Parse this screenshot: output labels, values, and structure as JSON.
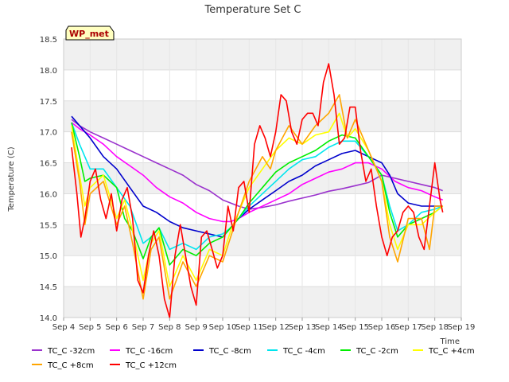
{
  "chart_data": {
    "type": "line",
    "title": "Temperature Set C",
    "xlabel": "Time",
    "ylabel": "Temperature (C)",
    "badge": "WP_met",
    "xlim": [
      4,
      19
    ],
    "ylim": [
      14.0,
      18.5
    ],
    "x_ticks": [
      4,
      5,
      6,
      7,
      8,
      9,
      10,
      11,
      12,
      13,
      14,
      15,
      16,
      17,
      18,
      19
    ],
    "x_tick_labels": [
      "Sep 4",
      "Sep 5",
      "Sep 6",
      "Sep 7",
      "Sep 8",
      "Sep 9",
      "Sep 10",
      "Sep 11",
      "Sep 12",
      "Sep 13",
      "Sep 14",
      "Sep 15",
      "Sep 16",
      "Sep 17",
      "Sep 18",
      "Sep 19"
    ],
    "y_ticks": [
      14.0,
      14.5,
      15.0,
      15.5,
      16.0,
      16.5,
      17.0,
      17.5,
      18.0,
      18.5
    ],
    "y_tick_labels": [
      "14.0",
      "14.5",
      "15.0",
      "15.5",
      "16.0",
      "16.5",
      "17.0",
      "17.5",
      "18.0",
      "18.5"
    ],
    "grid": true,
    "legend_position": "bottom",
    "series": [
      {
        "name": "TC_C -32cm",
        "color": "#9a32cd",
        "x": [
          4.3,
          4.6,
          5.0,
          5.5,
          6.0,
          6.5,
          7.0,
          7.5,
          8.0,
          8.5,
          9.0,
          9.5,
          10.0,
          10.3,
          10.6,
          11.0,
          11.5,
          12.0,
          12.5,
          13.0,
          13.5,
          14.0,
          14.5,
          15.0,
          15.5,
          16.0,
          16.5,
          17.0,
          17.5,
          18.0,
          18.3
        ],
        "y": [
          17.2,
          17.1,
          17.0,
          16.9,
          16.8,
          16.7,
          16.6,
          16.5,
          16.4,
          16.3,
          16.15,
          16.05,
          15.9,
          15.85,
          15.8,
          15.75,
          15.78,
          15.82,
          15.88,
          15.93,
          15.98,
          16.04,
          16.08,
          16.13,
          16.18,
          16.3,
          16.25,
          16.2,
          16.15,
          16.1,
          16.05
        ]
      },
      {
        "name": "TC_C -16cm",
        "color": "#ff00ff",
        "x": [
          4.3,
          4.6,
          5.0,
          5.5,
          6.0,
          6.5,
          7.0,
          7.5,
          8.0,
          8.5,
          9.0,
          9.5,
          10.0,
          10.3,
          10.6,
          11.0,
          11.5,
          12.0,
          12.5,
          13.0,
          13.5,
          14.0,
          14.5,
          15.0,
          15.5,
          16.0,
          16.5,
          17.0,
          17.5,
          18.0,
          18.3
        ],
        "y": [
          17.15,
          17.05,
          16.95,
          16.8,
          16.6,
          16.45,
          16.3,
          16.1,
          15.95,
          15.85,
          15.7,
          15.6,
          15.55,
          15.55,
          15.6,
          15.7,
          15.8,
          15.9,
          16.0,
          16.15,
          16.25,
          16.35,
          16.4,
          16.5,
          16.5,
          16.4,
          16.2,
          16.1,
          16.05,
          15.95,
          15.9
        ]
      },
      {
        "name": "TC_C -8cm",
        "color": "#0000cc",
        "x": [
          4.3,
          4.6,
          5.0,
          5.5,
          6.0,
          6.5,
          7.0,
          7.5,
          8.0,
          8.5,
          9.0,
          9.5,
          10.0,
          10.3,
          10.6,
          11.0,
          11.5,
          12.0,
          12.5,
          13.0,
          13.5,
          14.0,
          14.5,
          15.0,
          15.5,
          16.0,
          16.3,
          16.6,
          17.0,
          17.5,
          18.0,
          18.3
        ],
        "y": [
          17.25,
          17.1,
          16.9,
          16.6,
          16.4,
          16.1,
          15.8,
          15.7,
          15.55,
          15.45,
          15.4,
          15.35,
          15.3,
          15.45,
          15.6,
          15.75,
          15.9,
          16.05,
          16.2,
          16.3,
          16.45,
          16.55,
          16.65,
          16.7,
          16.6,
          16.5,
          16.3,
          16.0,
          15.85,
          15.8,
          15.8,
          15.8
        ]
      },
      {
        "name": "TC_C -4cm",
        "color": "#00e5ee",
        "x": [
          4.3,
          4.6,
          5.0,
          5.5,
          6.0,
          6.5,
          7.0,
          7.3,
          7.6,
          8.0,
          8.5,
          9.0,
          9.5,
          10.0,
          10.3,
          10.6,
          11.0,
          11.5,
          12.0,
          12.5,
          13.0,
          13.5,
          14.0,
          14.5,
          15.0,
          15.5,
          16.0,
          16.3,
          16.6,
          17.0,
          17.5,
          18.0,
          18.3
        ],
        "y": [
          17.15,
          16.8,
          16.4,
          16.4,
          16.1,
          15.8,
          15.2,
          15.3,
          15.45,
          15.1,
          15.2,
          15.1,
          15.3,
          15.35,
          15.45,
          15.6,
          15.8,
          16.0,
          16.2,
          16.4,
          16.55,
          16.6,
          16.75,
          16.85,
          16.85,
          16.6,
          16.3,
          15.8,
          15.4,
          15.5,
          15.7,
          15.75,
          15.8
        ]
      },
      {
        "name": "TC_C -2cm",
        "color": "#00ee00",
        "x": [
          4.3,
          4.6,
          4.8,
          5.0,
          5.5,
          6.0,
          6.3,
          6.6,
          7.0,
          7.3,
          7.6,
          8.0,
          8.5,
          9.0,
          9.5,
          10.0,
          10.3,
          10.6,
          11.0,
          11.5,
          12.0,
          12.5,
          13.0,
          13.5,
          14.0,
          14.5,
          15.0,
          15.5,
          16.0,
          16.3,
          16.6,
          17.0,
          17.5,
          18.0,
          18.3
        ],
        "y": [
          17.15,
          16.6,
          16.2,
          16.25,
          16.3,
          16.1,
          15.6,
          15.4,
          14.95,
          15.3,
          15.45,
          14.85,
          15.1,
          15.0,
          15.2,
          15.3,
          15.45,
          15.6,
          15.85,
          16.1,
          16.35,
          16.5,
          16.6,
          16.7,
          16.85,
          16.95,
          16.9,
          16.6,
          16.3,
          15.7,
          15.3,
          15.5,
          15.6,
          15.7,
          15.8
        ]
      },
      {
        "name": "TC_C +4cm",
        "color": "#ffff00",
        "x": [
          4.3,
          4.6,
          4.8,
          5.0,
          5.5,
          6.0,
          6.3,
          6.6,
          7.0,
          7.3,
          7.6,
          8.0,
          8.5,
          9.0,
          9.5,
          10.0,
          10.3,
          10.6,
          11.0,
          11.5,
          12.0,
          12.5,
          13.0,
          13.5,
          14.0,
          14.4,
          14.7,
          15.0,
          15.5,
          16.0,
          16.3,
          16.6,
          17.0,
          17.5,
          18.0,
          18.3
        ],
        "y": [
          17.1,
          16.3,
          15.8,
          16.1,
          16.3,
          15.6,
          15.9,
          15.4,
          14.6,
          15.2,
          15.4,
          14.5,
          15.0,
          14.6,
          15.1,
          15.0,
          15.4,
          15.7,
          16.1,
          16.4,
          16.7,
          16.9,
          16.8,
          16.95,
          17.0,
          17.3,
          16.9,
          17.05,
          16.7,
          16.2,
          15.5,
          15.1,
          15.5,
          15.5,
          15.7,
          15.8
        ]
      },
      {
        "name": "TC_C +8cm",
        "color": "#ffa500",
        "x": [
          4.3,
          4.6,
          4.8,
          5.0,
          5.5,
          6.0,
          6.3,
          6.6,
          7.0,
          7.3,
          7.6,
          8.0,
          8.5,
          9.0,
          9.5,
          10.0,
          10.3,
          10.6,
          11.0,
          11.5,
          11.8,
          12.0,
          12.5,
          13.0,
          13.5,
          14.0,
          14.4,
          14.7,
          15.0,
          15.5,
          16.0,
          16.3,
          16.6,
          17.0,
          17.5,
          17.8,
          18.0,
          18.3
        ],
        "y": [
          17.0,
          16.2,
          15.5,
          16.0,
          16.2,
          15.5,
          15.8,
          15.2,
          14.3,
          15.1,
          15.3,
          14.3,
          14.9,
          14.5,
          15.0,
          14.9,
          15.3,
          15.7,
          16.2,
          16.6,
          16.4,
          16.7,
          17.1,
          16.8,
          17.1,
          17.3,
          17.6,
          16.9,
          17.2,
          16.7,
          16.2,
          15.3,
          14.9,
          15.6,
          15.6,
          15.1,
          15.8,
          15.8
        ]
      },
      {
        "name": "TC_C +12cm",
        "color": "#ff0000",
        "x": [
          4.3,
          4.5,
          4.65,
          4.8,
          5.0,
          5.2,
          5.4,
          5.6,
          5.8,
          6.0,
          6.2,
          6.4,
          6.6,
          6.8,
          7.0,
          7.2,
          7.4,
          7.6,
          7.8,
          8.0,
          8.2,
          8.4,
          8.6,
          8.8,
          9.0,
          9.2,
          9.4,
          9.6,
          9.8,
          10.0,
          10.2,
          10.4,
          10.6,
          10.8,
          11.0,
          11.2,
          11.4,
          11.6,
          11.8,
          12.0,
          12.2,
          12.4,
          12.6,
          12.8,
          13.0,
          13.2,
          13.4,
          13.6,
          13.8,
          14.0,
          14.2,
          14.4,
          14.6,
          14.8,
          15.0,
          15.2,
          15.4,
          15.6,
          15.8,
          16.0,
          16.2,
          16.4,
          16.6,
          16.8,
          17.0,
          17.2,
          17.4,
          17.6,
          17.8,
          18.0,
          18.2,
          18.3
        ],
        "y": [
          16.75,
          16.0,
          15.3,
          15.6,
          16.2,
          16.4,
          15.9,
          15.6,
          16.0,
          15.4,
          15.9,
          16.1,
          15.6,
          14.6,
          14.4,
          15.0,
          15.4,
          15.0,
          14.3,
          14.0,
          15.0,
          15.5,
          15.0,
          14.5,
          14.2,
          15.3,
          15.4,
          15.1,
          14.8,
          15.0,
          15.8,
          15.4,
          16.1,
          16.2,
          15.7,
          16.8,
          17.1,
          16.9,
          16.6,
          17.0,
          17.6,
          17.5,
          17.0,
          16.8,
          17.2,
          17.3,
          17.3,
          17.1,
          17.8,
          18.1,
          17.6,
          16.8,
          16.9,
          17.4,
          17.4,
          16.7,
          16.2,
          16.4,
          15.8,
          15.3,
          15.0,
          15.3,
          15.4,
          15.7,
          15.8,
          15.7,
          15.3,
          15.1,
          15.8,
          16.5,
          15.9,
          15.7
        ]
      }
    ]
  }
}
